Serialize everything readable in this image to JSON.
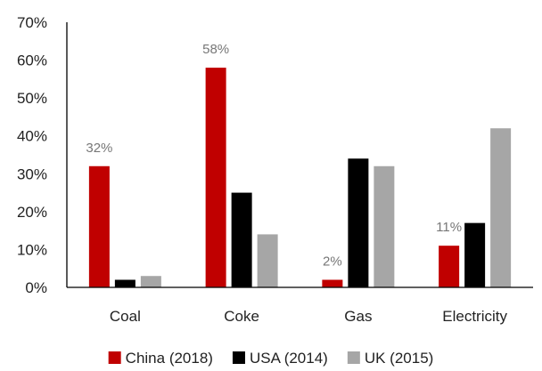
{
  "chart_data": {
    "type": "bar",
    "categories": [
      "Coal",
      "Coke",
      "Gas",
      "Electricity"
    ],
    "series": [
      {
        "name": "China (2018)",
        "values": [
          32,
          58,
          2,
          11
        ],
        "color": "#c00000"
      },
      {
        "name": "USA (2014)",
        "values": [
          2,
          25,
          34,
          17
        ],
        "color": "#000000"
      },
      {
        "name": "UK (2015)",
        "values": [
          3,
          14,
          32,
          42
        ],
        "color": "#a6a6a6"
      }
    ],
    "data_labels": [
      {
        "series": 0,
        "category": 0,
        "text": "32%"
      },
      {
        "series": 0,
        "category": 1,
        "text": "58%"
      },
      {
        "series": 0,
        "category": 2,
        "text": "2%"
      },
      {
        "series": 0,
        "category": 3,
        "text": "11%"
      }
    ],
    "ylim": [
      0,
      70
    ],
    "yticks": [
      0,
      10,
      20,
      30,
      40,
      50,
      60,
      70
    ],
    "ytick_labels": [
      "0%",
      "10%",
      "20%",
      "30%",
      "40%",
      "50%",
      "60%",
      "70%"
    ],
    "grid": false,
    "legend_position": "bottom",
    "title": "",
    "xlabel": "",
    "ylabel": ""
  }
}
